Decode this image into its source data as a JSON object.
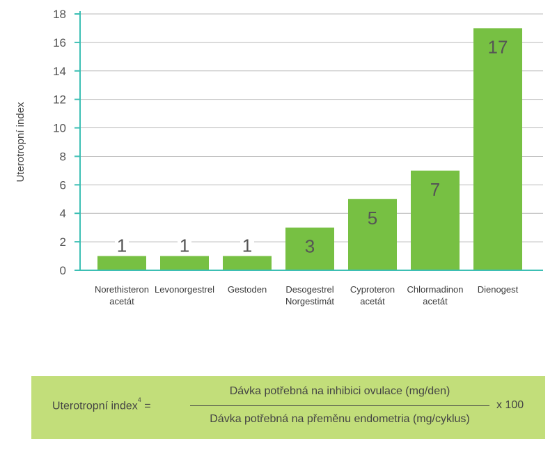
{
  "chart_data": {
    "type": "bar",
    "title": "",
    "xlabel": "",
    "ylabel": "Uterotropní index",
    "ylim": [
      0,
      18
    ],
    "yticks": [
      0,
      2,
      4,
      6,
      8,
      10,
      12,
      14,
      16,
      18
    ],
    "grid": true,
    "categories": [
      [
        "Norethisteron",
        "acetát"
      ],
      [
        "Levonorgestrel"
      ],
      [
        "Gestoden"
      ],
      [
        "Desogestrel",
        "Norgestimát"
      ],
      [
        "Cyproteron",
        "acetát"
      ],
      [
        "Chlormadinon",
        "acetát"
      ],
      [
        "Dienogest"
      ]
    ],
    "values": [
      1,
      1,
      1,
      3,
      5,
      7,
      17
    ],
    "colors": {
      "bar": "#77c043",
      "axis": "#3cbfb4",
      "grid": "#b8b8b8",
      "text": "#555555"
    }
  },
  "formula": {
    "lhs": "Uterotropní index",
    "sup": "4",
    "equals": "=",
    "numerator": "Dávka potřebná na inhibici ovulace (mg/den)",
    "denominator": "Dávka potřebná na přeměnu endometria (mg/cyklus)",
    "multiplier": "x 100",
    "background": "#c2de7a"
  }
}
